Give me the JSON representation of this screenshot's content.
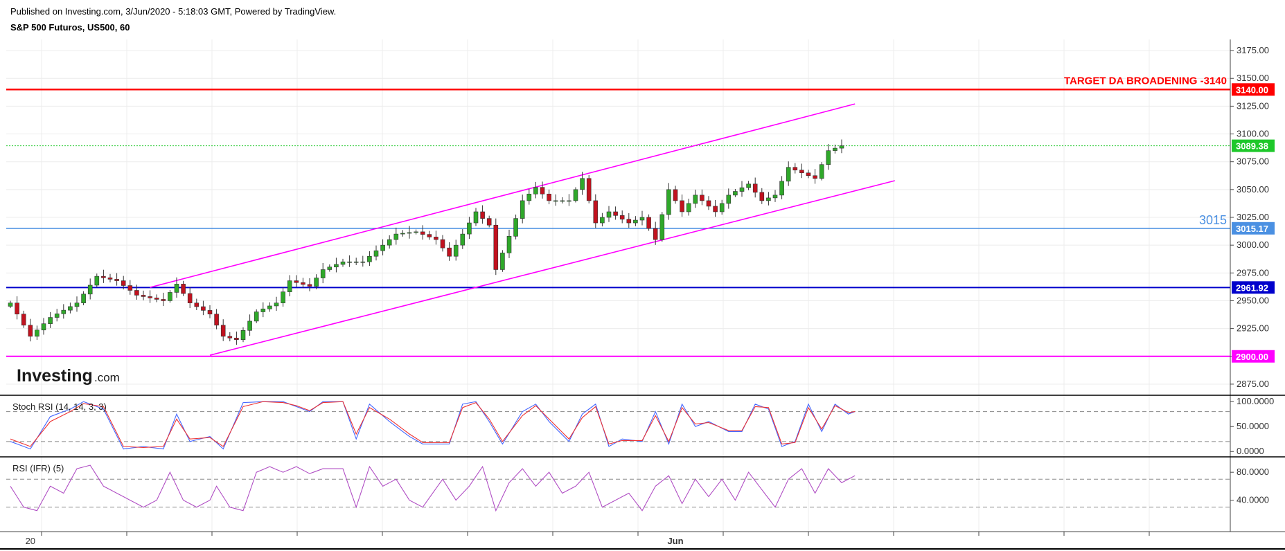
{
  "header": {
    "published": "Published on Investing.com, 3/Jun/2020 - 5:18:03 GMT, Powered by TradingView.",
    "symbol": "S&P 500 Futuros, US500, 60"
  },
  "logo": {
    "brand": "Investing",
    "suffix": ".com"
  },
  "colors": {
    "up": "#2fa82a",
    "down": "#c1121f",
    "channel": "#ff00ff",
    "target": "#ff0000",
    "support3015": "#4a90e2",
    "support2961": "#0000cc",
    "support2900": "#ff00ff",
    "last": "#1ec82a",
    "stoch_k": "#4466ff",
    "stoch_d": "#ee3333",
    "rsi": "#b04ec4"
  },
  "chart_data": [
    {
      "type": "candlestick",
      "title": "S&P 500 Futuros, US500, 60",
      "x_tick_labels": [
        {
          "label": "20",
          "index": 3
        },
        {
          "label": "Jun",
          "index": 100
        }
      ],
      "y_ticks": [
        2875,
        2900,
        2925,
        2950,
        2975,
        3000,
        3025,
        3050,
        3075,
        3100,
        3125,
        3150,
        3175
      ],
      "y_range": [
        2865,
        3185
      ],
      "price_tags": [
        {
          "label": "3140.00",
          "value": 3140,
          "color": "#ff0000"
        },
        {
          "label": "3089.38",
          "value": 3089.38,
          "color": "#1ec82a"
        },
        {
          "label": "3015.17",
          "value": 3015.17,
          "color": "#4a90e2"
        },
        {
          "label": "2961.92",
          "value": 2961.92,
          "color": "#0000cc"
        },
        {
          "label": "2900.00",
          "value": 2900,
          "color": "#ff00ff"
        }
      ],
      "horizontal_lines": [
        {
          "value": 3140,
          "color": "#ff0000",
          "width": 2.5,
          "label": "TARGET DA BROADENING -3140"
        },
        {
          "value": 3015.17,
          "color": "#4a90e2",
          "width": 1.6,
          "label": "3015"
        },
        {
          "value": 2961.92,
          "color": "#0000cc",
          "width": 2,
          "label": ""
        },
        {
          "value": 2900,
          "color": "#ff00ff",
          "width": 2,
          "label": ""
        },
        {
          "value": 3089.38,
          "color": "#1ec82a",
          "width": 1,
          "dotted": true,
          "label": ""
        }
      ],
      "channel_lines": [
        {
          "from": {
            "index": 21,
            "value": 2962
          },
          "to": {
            "index": 127,
            "value": 3127
          }
        },
        {
          "from": {
            "index": 30,
            "value": 2901
          },
          "to": {
            "index": 133,
            "value": 3058
          }
        }
      ],
      "anchors": [
        [
          0,
          2948
        ],
        [
          3,
          2918
        ],
        [
          6,
          2935
        ],
        [
          10,
          2948
        ],
        [
          13,
          2972
        ],
        [
          16,
          2968
        ],
        [
          19,
          2955
        ],
        [
          23,
          2950
        ],
        [
          25,
          2965
        ],
        [
          27,
          2948
        ],
        [
          30,
          2938
        ],
        [
          32,
          2918
        ],
        [
          34,
          2915
        ],
        [
          37,
          2940
        ],
        [
          40,
          2948
        ],
        [
          42,
          2968
        ],
        [
          45,
          2963
        ],
        [
          47,
          2978
        ],
        [
          50,
          2985
        ],
        [
          53,
          2985
        ],
        [
          56,
          3000
        ],
        [
          58,
          3010
        ],
        [
          61,
          3012
        ],
        [
          64,
          3005
        ],
        [
          66,
          2990
        ],
        [
          68,
          3010
        ],
        [
          70,
          3030
        ],
        [
          72,
          3018
        ],
        [
          73,
          2978
        ],
        [
          75,
          3008
        ],
        [
          77,
          3040
        ],
        [
          79,
          3052
        ],
        [
          81,
          3040
        ],
        [
          84,
          3040
        ],
        [
          86,
          3060
        ],
        [
          88,
          3020
        ],
        [
          90,
          3030
        ],
        [
          93,
          3020
        ],
        [
          95,
          3025
        ],
        [
          97,
          3005
        ],
        [
          99,
          3050
        ],
        [
          101,
          3030
        ],
        [
          103,
          3045
        ],
        [
          106,
          3030
        ],
        [
          108,
          3045
        ],
        [
          111,
          3055
        ],
        [
          113,
          3040
        ],
        [
          115,
          3045
        ],
        [
          117,
          3070
        ],
        [
          119,
          3065
        ],
        [
          121,
          3060
        ],
        [
          123,
          3085
        ],
        [
          125,
          3089.4
        ]
      ],
      "candle_count": 126
    },
    {
      "type": "line",
      "title": "Stoch RSI (14, 14, 3, 3)",
      "y_ticks": [
        0,
        50,
        100
      ],
      "y_tick_labels": [
        "0.0000",
        "50.0000",
        "100.0000"
      ],
      "y_range": [
        -8,
        110
      ],
      "guides": [
        20,
        80
      ],
      "series": [
        {
          "role": "k",
          "color": "#4466ff",
          "anchors": [
            [
              0,
              20
            ],
            [
              3,
              5
            ],
            [
              6,
              70
            ],
            [
              9,
              85
            ],
            [
              11,
              100
            ],
            [
              14,
              85
            ],
            [
              17,
              5
            ],
            [
              20,
              10
            ],
            [
              23,
              5
            ],
            [
              25,
              75
            ],
            [
              27,
              20
            ],
            [
              30,
              30
            ],
            [
              32,
              5
            ],
            [
              35,
              98
            ],
            [
              38,
              100
            ],
            [
              41,
              100
            ],
            [
              43,
              90
            ],
            [
              45,
              80
            ],
            [
              47,
              100
            ],
            [
              50,
              100
            ],
            [
              52,
              25
            ],
            [
              54,
              95
            ],
            [
              57,
              60
            ],
            [
              60,
              30
            ],
            [
              62,
              15
            ],
            [
              66,
              15
            ],
            [
              68,
              95
            ],
            [
              70,
              100
            ],
            [
              72,
              60
            ],
            [
              74,
              15
            ],
            [
              77,
              80
            ],
            [
              79,
              95
            ],
            [
              81,
              60
            ],
            [
              84,
              20
            ],
            [
              86,
              75
            ],
            [
              88,
              95
            ],
            [
              90,
              10
            ],
            [
              92,
              25
            ],
            [
              95,
              20
            ],
            [
              97,
              80
            ],
            [
              99,
              15
            ],
            [
              101,
              95
            ],
            [
              103,
              50
            ],
            [
              105,
              60
            ],
            [
              108,
              40
            ],
            [
              110,
              40
            ],
            [
              112,
              95
            ],
            [
              114,
              85
            ],
            [
              116,
              10
            ],
            [
              118,
              20
            ],
            [
              120,
              95
            ],
            [
              122,
              40
            ],
            [
              124,
              95
            ],
            [
              126,
              75
            ],
            [
              127,
              80
            ]
          ]
        },
        {
          "role": "d",
          "color": "#ee3333",
          "anchors": [
            [
              0,
              25
            ],
            [
              3,
              10
            ],
            [
              6,
              60
            ],
            [
              9,
              80
            ],
            [
              11,
              96
            ],
            [
              14,
              90
            ],
            [
              17,
              10
            ],
            [
              20,
              8
            ],
            [
              23,
              10
            ],
            [
              25,
              65
            ],
            [
              27,
              25
            ],
            [
              30,
              28
            ],
            [
              32,
              10
            ],
            [
              35,
              90
            ],
            [
              38,
              100
            ],
            [
              41,
              98
            ],
            [
              43,
              92
            ],
            [
              45,
              82
            ],
            [
              47,
              98
            ],
            [
              50,
              100
            ],
            [
              52,
              35
            ],
            [
              54,
              88
            ],
            [
              57,
              65
            ],
            [
              60,
              35
            ],
            [
              62,
              18
            ],
            [
              66,
              18
            ],
            [
              68,
              88
            ],
            [
              70,
              98
            ],
            [
              72,
              65
            ],
            [
              74,
              20
            ],
            [
              77,
              72
            ],
            [
              79,
              92
            ],
            [
              81,
              65
            ],
            [
              84,
              25
            ],
            [
              86,
              68
            ],
            [
              88,
              90
            ],
            [
              90,
              15
            ],
            [
              92,
              22
            ],
            [
              95,
              22
            ],
            [
              97,
              72
            ],
            [
              99,
              20
            ],
            [
              101,
              88
            ],
            [
              103,
              55
            ],
            [
              105,
              58
            ],
            [
              108,
              42
            ],
            [
              110,
              42
            ],
            [
              112,
              90
            ],
            [
              114,
              88
            ],
            [
              116,
              15
            ],
            [
              118,
              18
            ],
            [
              120,
              88
            ],
            [
              122,
              45
            ],
            [
              124,
              92
            ],
            [
              126,
              78
            ],
            [
              127,
              80
            ]
          ]
        }
      ]
    },
    {
      "type": "line",
      "title": "RSI (IFR) (5)",
      "y_ticks": [
        40,
        80
      ],
      "y_tick_labels": [
        "40.0000",
        "80.0000"
      ],
      "y_range": [
        -5,
        100
      ],
      "guides": [
        30,
        70
      ],
      "series": [
        {
          "role": "rsi",
          "color": "#b04ec4",
          "anchors": [
            [
              0,
              60
            ],
            [
              2,
              30
            ],
            [
              4,
              25
            ],
            [
              6,
              60
            ],
            [
              8,
              50
            ],
            [
              10,
              85
            ],
            [
              12,
              90
            ],
            [
              14,
              60
            ],
            [
              16,
              50
            ],
            [
              18,
              40
            ],
            [
              20,
              30
            ],
            [
              22,
              40
            ],
            [
              24,
              80
            ],
            [
              26,
              40
            ],
            [
              28,
              30
            ],
            [
              30,
              40
            ],
            [
              31,
              60
            ],
            [
              33,
              30
            ],
            [
              35,
              25
            ],
            [
              37,
              80
            ],
            [
              39,
              88
            ],
            [
              41,
              80
            ],
            [
              43,
              88
            ],
            [
              45,
              78
            ],
            [
              47,
              85
            ],
            [
              50,
              85
            ],
            [
              52,
              30
            ],
            [
              54,
              88
            ],
            [
              56,
              60
            ],
            [
              58,
              70
            ],
            [
              60,
              40
            ],
            [
              62,
              30
            ],
            [
              65,
              70
            ],
            [
              67,
              40
            ],
            [
              69,
              60
            ],
            [
              71,
              88
            ],
            [
              73,
              25
            ],
            [
              75,
              65
            ],
            [
              77,
              85
            ],
            [
              79,
              60
            ],
            [
              81,
              80
            ],
            [
              83,
              50
            ],
            [
              85,
              60
            ],
            [
              87,
              80
            ],
            [
              89,
              30
            ],
            [
              91,
              40
            ],
            [
              93,
              50
            ],
            [
              95,
              25
            ],
            [
              97,
              60
            ],
            [
              99,
              75
            ],
            [
              101,
              35
            ],
            [
              103,
              70
            ],
            [
              105,
              45
            ],
            [
              107,
              70
            ],
            [
              109,
              40
            ],
            [
              111,
              80
            ],
            [
              113,
              55
            ],
            [
              115,
              30
            ],
            [
              117,
              70
            ],
            [
              119,
              85
            ],
            [
              121,
              50
            ],
            [
              123,
              85
            ],
            [
              125,
              65
            ],
            [
              127,
              75
            ]
          ]
        }
      ]
    }
  ]
}
